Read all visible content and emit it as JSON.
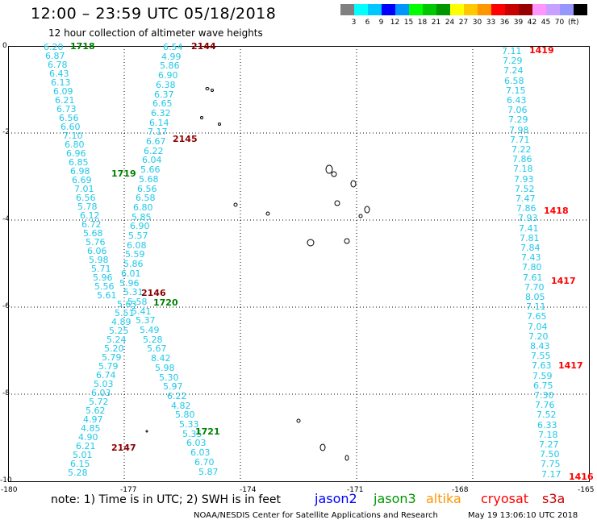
{
  "header": {
    "title": "12:00 – 23:59 UTC 05/18/2018",
    "subtitle": "12 hour collection of altimeter wave heights"
  },
  "colorscale": {
    "colors": [
      "#808080",
      "#00ffff",
      "#00c8ff",
      "#0000ff",
      "#0096ff",
      "#00ff00",
      "#00c800",
      "#009600",
      "#ffff00",
      "#ffc800",
      "#ff9600",
      "#ff0000",
      "#c80000",
      "#960000",
      "#ff96ff",
      "#c8a0ff",
      "#9696ff",
      "#000000"
    ],
    "labels": [
      "3",
      "6",
      "9",
      "12",
      "15",
      "18",
      "21",
      "24",
      "27",
      "30",
      "33",
      "36",
      "39",
      "42",
      "45",
      "70"
    ],
    "unit": "(ft)"
  },
  "axes": {
    "x_ticks": [
      "-180",
      "-177",
      "-174",
      "-171",
      "-168",
      "-165"
    ],
    "y_ticks": [
      "0",
      "-2",
      "-4",
      "-6",
      "-8",
      "-10"
    ]
  },
  "times": [
    {
      "text": "1718",
      "color": "#008000"
    },
    {
      "text": "1719",
      "color": "#008000"
    },
    {
      "text": "1720",
      "color": "#008000"
    },
    {
      "text": "1721",
      "color": "#008000"
    },
    {
      "text": "2144",
      "color": "#8b0000"
    },
    {
      "text": "2145",
      "color": "#8b0000"
    },
    {
      "text": "2146",
      "color": "#8b0000"
    },
    {
      "text": "2147",
      "color": "#8b0000"
    },
    {
      "text": "1419",
      "color": "#ff0000"
    },
    {
      "text": "1418",
      "color": "#ff0000"
    },
    {
      "text": "1417",
      "color": "#ff0000"
    },
    {
      "text": "1417",
      "color": "#ff0000"
    },
    {
      "text": "1416",
      "color": "#ff0000"
    }
  ],
  "tracks": {
    "track_a": [
      "6.20",
      "6.87",
      "6.78",
      "6.43",
      "6.13",
      "6.09",
      "6.21",
      "6.73",
      "6.56",
      "6.60",
      "7.10",
      "6.80",
      "6.96",
      "6.85",
      "6.98",
      "6.69",
      "7.01",
      "6.56",
      "5.78",
      "6.12",
      "6.72",
      "5.68",
      "5.76",
      "6.06",
      "5.98",
      "5.71",
      "5.96",
      "5.56",
      "5.61",
      "5.63",
      "5.51",
      "4.89",
      "5.25",
      "5.24",
      "5.20",
      "5.79",
      "5.79",
      "6.74",
      "5.03",
      "6.03",
      "5.72",
      "5.62",
      "4.97",
      "4.85",
      "4.90",
      "6.21",
      "5.01",
      "6.15",
      "5.28"
    ],
    "track_b": [
      "6.54",
      "4.99",
      "5.86",
      "6.90",
      "6.38",
      "6.37",
      "6.65",
      "6.32",
      "6.14",
      "7.17",
      "6.67",
      "6.22",
      "6.04",
      "5.66",
      "5.68",
      "6.56",
      "6.58",
      "6.80",
      "5.85",
      "6.90",
      "5.57",
      "6.08",
      "5.59",
      "5.86",
      "6.01",
      "5.96",
      "5.31",
      "5.58",
      "5.41",
      "5.37",
      "5.49",
      "5.28",
      "5.67",
      "8.42",
      "5.98",
      "5.30",
      "5.97",
      "6.22",
      "4.82",
      "5.80",
      "5.33",
      "5.35",
      "6.03",
      "6.03",
      "6.70",
      "5.87"
    ],
    "track_c": [
      "7.11",
      "7.29",
      "7.24",
      "6.58",
      "7.15",
      "6.43",
      "7.06",
      "7.29",
      "7.98",
      "7.71",
      "7.22",
      "7.86",
      "7.18",
      "7.93",
      "7.52",
      "7.47",
      "7.86",
      "7.93",
      "7.41",
      "7.81",
      "7.84",
      "7.43",
      "7.80",
      "7.61",
      "7.70",
      "8.05",
      "7.11",
      "7.65",
      "7.04",
      "7.20",
      "8.43",
      "7.55",
      "7.63",
      "7.59",
      "6.75",
      "7.30",
      "7.76",
      "7.52",
      "6.33",
      "7.18",
      "7.27",
      "7.50",
      "7.75",
      "7.17"
    ]
  },
  "islands": {},
  "note": "note:  1) Time is in UTC;  2) SWH is in feet",
  "satellites": [
    {
      "name": "jason2",
      "color": "#0000ff"
    },
    {
      "name": "jason3",
      "color": "#009600"
    },
    {
      "name": "altika",
      "color": "#ff9600"
    },
    {
      "name": "cryosat",
      "color": "#ff0000"
    },
    {
      "name": "s3a",
      "color": "#c80000"
    }
  ],
  "footer": {
    "credit": "NOAA/NESDIS Center for Satellite Applications and Research",
    "timestamp": "May 19 13:06:10 UTC 2018"
  }
}
